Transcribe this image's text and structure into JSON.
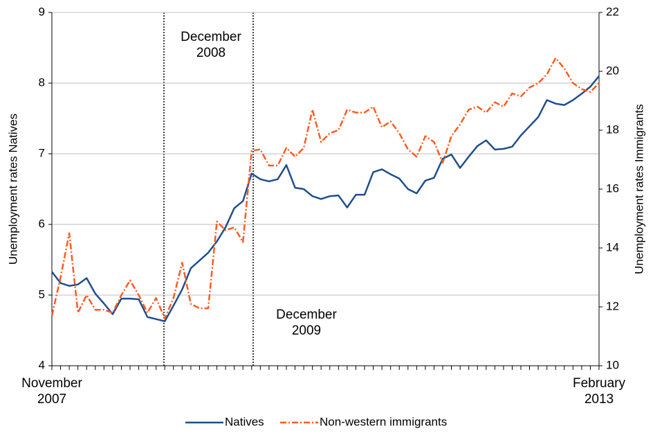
{
  "chart_data": {
    "type": "line",
    "y_label": "Unemployment rates Natives",
    "y2_label": "Unemployment rates Immigrants",
    "annotations": [
      "December 2008",
      "December 2009"
    ],
    "categories": [
      "November 2007",
      null,
      null,
      null,
      null,
      null,
      null,
      null,
      null,
      null,
      null,
      null,
      null,
      null,
      null,
      null,
      null,
      null,
      null,
      null,
      null,
      null,
      null,
      null,
      null,
      null,
      null,
      null,
      null,
      null,
      null,
      null,
      null,
      null,
      null,
      null,
      null,
      null,
      null,
      null,
      null,
      null,
      null,
      null,
      null,
      null,
      null,
      null,
      null,
      null,
      null,
      null,
      null,
      null,
      null,
      null,
      null,
      null,
      null,
      null,
      null,
      null,
      null,
      "February 2013"
    ],
    "ylim": [
      4,
      9
    ],
    "yticks": [
      4,
      5,
      6,
      7,
      8,
      9
    ],
    "y2lim": [
      10,
      22
    ],
    "y2ticks": [
      10,
      12,
      14,
      16,
      18,
      20,
      22
    ],
    "grid": true,
    "legend": "bottom",
    "series": [
      {
        "name": "Natives",
        "color": "#1f4e8c",
        "values": [
          5.33,
          5.17,
          5.13,
          5.15,
          5.24,
          5.02,
          4.88,
          4.73,
          4.95,
          4.95,
          4.94,
          4.69,
          4.66,
          4.63,
          4.85,
          5.08,
          5.38,
          5.49,
          5.6,
          5.76,
          5.96,
          6.23,
          6.33,
          6.72,
          6.64,
          6.61,
          6.64,
          6.84,
          6.52,
          6.5,
          6.4,
          6.36,
          6.4,
          6.41,
          6.24,
          6.42,
          6.42,
          6.74,
          6.78,
          6.71,
          6.65,
          6.5,
          6.44,
          6.62,
          6.66,
          6.93,
          6.99,
          6.8,
          6.96,
          7.11,
          7.19,
          7.06,
          7.07,
          7.1,
          7.26,
          7.39,
          7.52,
          7.76,
          7.71,
          7.69,
          7.76,
          7.85,
          7.95,
          8.1
        ]
      },
      {
        "name": "Non-western immigrants",
        "color": "#ff5a1f",
        "axis": "y2",
        "values": [
          11.7,
          13.0,
          14.5,
          11.8,
          12.4,
          11.9,
          11.9,
          11.8,
          12.4,
          12.9,
          12.4,
          11.8,
          12.3,
          11.6,
          12.3,
          13.5,
          12.1,
          11.95,
          11.95,
          14.9,
          14.6,
          14.7,
          14.2,
          17.3,
          17.35,
          16.8,
          16.8,
          17.4,
          17.1,
          17.4,
          18.7,
          17.6,
          17.9,
          18.0,
          18.7,
          18.6,
          18.6,
          18.8,
          18.1,
          18.3,
          17.9,
          17.35,
          17.1,
          17.8,
          17.6,
          16.9,
          17.8,
          18.2,
          18.7,
          18.8,
          18.6,
          18.95,
          18.8,
          19.25,
          19.15,
          19.45,
          19.6,
          19.9,
          20.45,
          20.1,
          19.6,
          19.4,
          19.3,
          19.6
        ]
      }
    ]
  }
}
